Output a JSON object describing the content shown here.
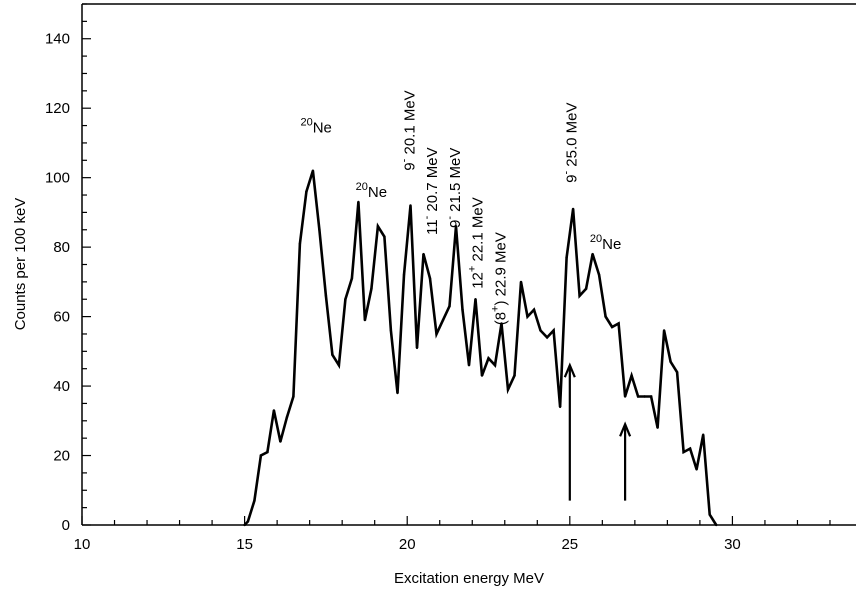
{
  "chart_data": {
    "type": "line",
    "title": "",
    "xlabel": "Excitation energy MeV",
    "ylabel": "Counts per 100 keV",
    "xlim": [
      10,
      33.8
    ],
    "ylim": [
      0,
      150
    ],
    "x_ticks": [
      10,
      15,
      20,
      25,
      30
    ],
    "y_ticks": [
      0,
      20,
      40,
      60,
      80,
      100,
      120,
      140
    ],
    "x_tick_labels": [
      "10",
      "15",
      "20",
      "25",
      "30"
    ],
    "y_tick_labels": [
      "0",
      "20",
      "40",
      "60",
      "80",
      "100",
      "120",
      "140"
    ],
    "grid": false,
    "legend": "none",
    "line_color": "#000000",
    "series": [
      {
        "x": [
          15.0,
          15.1,
          15.3,
          15.5,
          15.7,
          15.9,
          16.1,
          16.3,
          16.5,
          16.7,
          16.9,
          17.1,
          17.3,
          17.5,
          17.7,
          17.9,
          18.1,
          18.3,
          18.5,
          18.7,
          18.9,
          19.1,
          19.3,
          19.5,
          19.7,
          19.9,
          20.1,
          20.3,
          20.5,
          20.7,
          20.9,
          21.1,
          21.3,
          21.5,
          21.7,
          21.9,
          22.1,
          22.3,
          22.5,
          22.7,
          22.9,
          23.1,
          23.3,
          23.5,
          23.7,
          23.9,
          24.1,
          24.3,
          24.5,
          24.7,
          24.9,
          25.1,
          25.3,
          25.5,
          25.7,
          25.9,
          26.1,
          26.3,
          26.5,
          26.7,
          26.9,
          27.1,
          27.3,
          27.5,
          27.7,
          27.9,
          28.1,
          28.3,
          28.5,
          28.7,
          28.9,
          29.1,
          29.3,
          29.5
        ],
        "y": [
          0,
          1,
          7,
          20,
          21,
          33,
          24,
          31,
          37,
          81,
          96,
          102,
          85,
          66,
          49,
          46,
          65,
          71,
          93,
          59,
          68,
          86,
          83,
          56,
          38,
          72,
          92,
          51,
          78,
          71,
          55,
          59,
          63,
          86,
          62,
          46,
          65,
          43,
          48,
          46,
          58,
          39,
          43,
          70,
          60,
          62,
          56,
          54,
          56,
          34,
          77,
          91,
          66,
          68,
          78,
          72,
          60,
          57,
          58,
          37,
          43,
          37,
          37,
          37,
          28,
          56,
          47,
          44,
          21,
          22,
          16,
          26,
          3,
          0
        ]
      }
    ],
    "annotations": [
      {
        "base": "Ne",
        "sup": "20",
        "x": 17.2,
        "y": 113,
        "rotated": false
      },
      {
        "base": "Ne",
        "sup": "20",
        "x": 18.9,
        "y": 94.5,
        "rotated": false
      },
      {
        "base": "Ne",
        "sup": "20",
        "x": 26.1,
        "y": 79.5,
        "rotated": false
      },
      {
        "base": "9",
        "sup": "-",
        "tail": " 20.1 MeV",
        "x": 20.22,
        "y": 102,
        "rotated": true
      },
      {
        "base": "11",
        "sup": "-",
        "tail": " 20.7 MeV",
        "x": 20.92,
        "y": 83.5,
        "rotated": true
      },
      {
        "base": "9",
        "sup": "-",
        "tail": " 21.5 MeV",
        "x": 21.62,
        "y": 85.5,
        "rotated": true
      },
      {
        "base": "12",
        "sup": "+",
        "tail": " 22.1 MeV",
        "x": 22.32,
        "y": 68,
        "rotated": true
      },
      {
        "base": "(8",
        "sup": "+",
        "tail": ") 22.9 MeV",
        "x": 23.02,
        "y": 57.5,
        "rotated": true
      },
      {
        "base": "9",
        "sup": "-",
        "tail": " 25.0 MeV",
        "x": 25.2,
        "y": 98.5,
        "rotated": true
      }
    ],
    "arrows": [
      {
        "x": 25.0,
        "from": 7,
        "to": 46
      },
      {
        "x": 26.7,
        "from": 7,
        "to": 29
      }
    ]
  }
}
